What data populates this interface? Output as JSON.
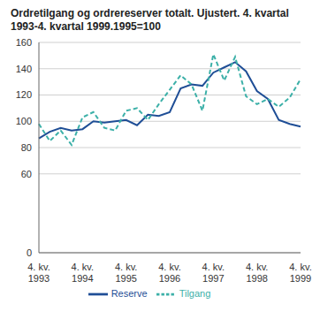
{
  "chart_data": {
    "type": "line",
    "title": "Ordretilgang og ordrereserver totalt. Ujustert. 4. kvartal 1993-4. kvartal 1999.1995=100",
    "categories": [
      "4. kv. 1993",
      null,
      null,
      null,
      "4. kv. 1994",
      null,
      null,
      null,
      "4. kv. 1995",
      null,
      null,
      null,
      "4. kv. 1996",
      null,
      null,
      null,
      "4. kv. 1997",
      null,
      null,
      null,
      "4. kv. 1998",
      null,
      null,
      null,
      "4. kv. 1999"
    ],
    "series": [
      {
        "name": "Reserve",
        "color": "#1f4e96",
        "line_style": "solid",
        "values": [
          87,
          92,
          95,
          93,
          94,
          100,
          99,
          100,
          101,
          97,
          105,
          104,
          107,
          125,
          128,
          127,
          137,
          141,
          145,
          138,
          123,
          117,
          101,
          98,
          96
        ]
      },
      {
        "name": "Tilgang",
        "color": "#3cb0a8",
        "line_style": "dashed",
        "values": [
          98,
          85,
          93,
          82,
          103,
          107,
          95,
          93,
          108,
          110,
          101,
          113,
          124,
          135,
          128,
          108,
          151,
          131,
          149,
          119,
          113,
          117,
          111,
          118,
          132
        ]
      }
    ],
    "ylim": [
      0,
      160
    ],
    "yticks": [
      0,
      60,
      80,
      100,
      120,
      140,
      160
    ],
    "grid": true,
    "legend": "bottom"
  }
}
